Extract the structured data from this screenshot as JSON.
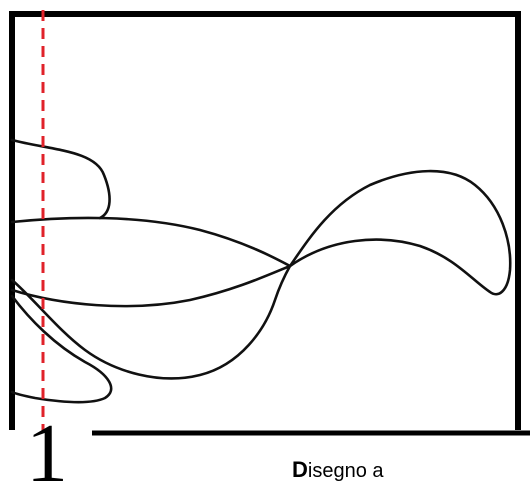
{
  "step_number": "1",
  "caption": {
    "initial": "D",
    "rest": "isegno a"
  },
  "colors": {
    "frame": "#000000",
    "guide_line": "#e0222a",
    "drawing": "#111111",
    "background": "#ffffff"
  }
}
